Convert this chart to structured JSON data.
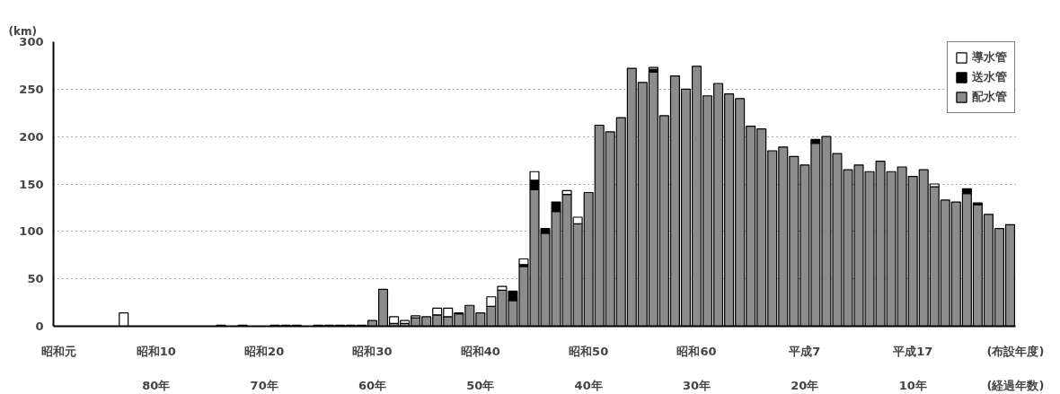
{
  "chart_data": {
    "type": "bar",
    "stacked": true,
    "ylabel": "(km)",
    "xlabel": "(布設年度)",
    "annotations": [
      "(経過年数)"
    ],
    "categories": [
      "昭和元",
      null,
      null,
      null,
      null,
      null,
      null,
      null,
      null,
      "昭和10\n80年",
      null,
      null,
      null,
      null,
      null,
      null,
      null,
      null,
      null,
      "昭和20\n70年",
      null,
      null,
      null,
      null,
      null,
      null,
      null,
      null,
      null,
      "昭和30\n60年",
      null,
      null,
      null,
      null,
      null,
      null,
      null,
      null,
      null,
      "昭和40\n50年",
      null,
      null,
      null,
      null,
      null,
      null,
      null,
      null,
      null,
      "昭和50\n40年",
      null,
      null,
      null,
      null,
      null,
      null,
      null,
      null,
      null,
      "昭和60\n30年",
      null,
      null,
      null,
      null,
      null,
      null,
      null,
      null,
      null,
      "平成7\n20年",
      null,
      null,
      null,
      null,
      null,
      null,
      null,
      null,
      null,
      "平成17\n10年",
      null,
      null,
      null,
      null,
      null,
      null,
      null,
      null,
      null
    ],
    "series": [
      {
        "name": "配水管",
        "color": "#8c8c8c",
        "values": [
          null,
          null,
          null,
          null,
          null,
          null,
          null,
          null,
          null,
          null,
          null,
          null,
          null,
          null,
          null,
          1,
          null,
          1,
          null,
          null,
          1,
          1,
          1,
          null,
          1,
          1,
          1,
          1,
          1,
          6,
          39,
          3,
          3,
          9,
          10,
          12,
          10,
          13,
          22,
          14,
          21,
          38,
          27,
          63,
          144,
          98,
          121,
          139,
          108,
          141,
          212,
          205,
          220,
          272,
          257,
          268,
          222,
          264,
          250,
          274,
          243,
          256,
          245,
          240,
          211,
          208,
          185,
          189,
          179,
          170,
          193,
          200,
          182,
          165,
          170,
          163,
          174,
          163,
          168,
          158,
          165,
          147,
          133,
          131,
          140,
          128,
          118,
          103,
          107
        ]
      },
      {
        "name": "送水管",
        "color": "#000000",
        "values": [
          null,
          null,
          null,
          null,
          null,
          null,
          null,
          null,
          null,
          null,
          null,
          null,
          null,
          null,
          null,
          null,
          null,
          null,
          null,
          null,
          null,
          null,
          null,
          null,
          null,
          null,
          null,
          null,
          null,
          null,
          null,
          null,
          null,
          null,
          null,
          null,
          null,
          null,
          null,
          null,
          null,
          null,
          10,
          2,
          10,
          5,
          10,
          null,
          null,
          null,
          null,
          null,
          null,
          null,
          null,
          3,
          null,
          null,
          null,
          null,
          null,
          null,
          null,
          null,
          null,
          null,
          null,
          null,
          null,
          null,
          4,
          null,
          null,
          null,
          null,
          null,
          null,
          null,
          null,
          null,
          null,
          null,
          null,
          null,
          5,
          2,
          null,
          null,
          null
        ]
      },
      {
        "name": "導水管",
        "color": "#ffffff",
        "values": [
          null,
          null,
          null,
          null,
          null,
          null,
          14,
          null,
          null,
          null,
          null,
          null,
          null,
          null,
          null,
          null,
          null,
          null,
          null,
          null,
          null,
          null,
          null,
          null,
          null,
          null,
          null,
          null,
          null,
          null,
          null,
          7,
          3,
          2,
          null,
          7,
          9,
          1,
          null,
          null,
          10,
          4,
          null,
          6,
          9,
          null,
          null,
          4,
          7,
          null,
          null,
          null,
          null,
          null,
          null,
          2,
          null,
          null,
          null,
          null,
          null,
          null,
          null,
          null,
          null,
          null,
          null,
          null,
          null,
          null,
          null,
          null,
          null,
          null,
          null,
          null,
          null,
          null,
          null,
          null,
          null,
          3,
          null,
          null,
          null,
          null,
          null,
          null,
          null
        ]
      }
    ],
    "ylim": [
      0,
      300
    ],
    "yticks": [
      0,
      50,
      100,
      150,
      200,
      250,
      300
    ],
    "grid": "y",
    "legend": "top right"
  }
}
